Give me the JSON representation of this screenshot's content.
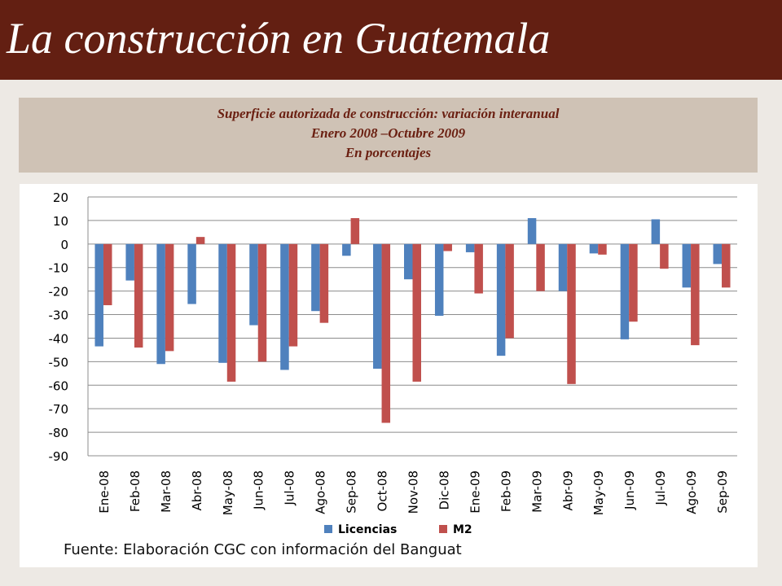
{
  "page": {
    "title": "La construcción en Guatemala",
    "subtitle_lines": [
      "Superficie autorizada de construcción: variación interanual",
      "Enero 2008 –Octubre 2009",
      "En porcentajes"
    ],
    "source": "Fuente:  Elaboración CGC con información del Banguat"
  },
  "colors": {
    "header_bg": "#631f12",
    "licencias": "#4f81bd",
    "m2": "#c0504d"
  },
  "chart_data": {
    "type": "bar",
    "categories": [
      "Ene-08",
      "Feb-08",
      "Mar-08",
      "Abr-08",
      "May-08",
      "Jun-08",
      "Jul-08",
      "Ago-08",
      "Sep-08",
      "Oct-08",
      "Nov-08",
      "Dic-08",
      "Ene-09",
      "Feb-09",
      "Mar-09",
      "Abr-09",
      "May-09",
      "Jun-09",
      "Jul-09",
      "Ago-09",
      "Sep-09"
    ],
    "series": [
      {
        "name": "Licencias",
        "values": [
          -43.5,
          -15.5,
          -51,
          -25.5,
          -50.5,
          -34.5,
          -53.5,
          -28.5,
          -5,
          -53,
          -15,
          -30.5,
          -3.5,
          -47.5,
          11,
          -20,
          -4,
          -40.5,
          10.5,
          -18.5,
          -8.5
        ]
      },
      {
        "name": "M2",
        "values": [
          -26,
          -44,
          -45.5,
          3,
          -58.5,
          -50,
          -43.5,
          -33.5,
          11,
          -76,
          -58.5,
          -3,
          -21,
          -40,
          -20,
          -59.5,
          -4.5,
          -33,
          -10.5,
          -43,
          -18.5
        ]
      }
    ],
    "yticks": [
      20,
      10,
      0,
      -10,
      -20,
      -30,
      -40,
      -50,
      -60,
      -70,
      -80,
      -90
    ],
    "ylim": [
      -90,
      20
    ],
    "grid": true,
    "legend": "bottom"
  }
}
